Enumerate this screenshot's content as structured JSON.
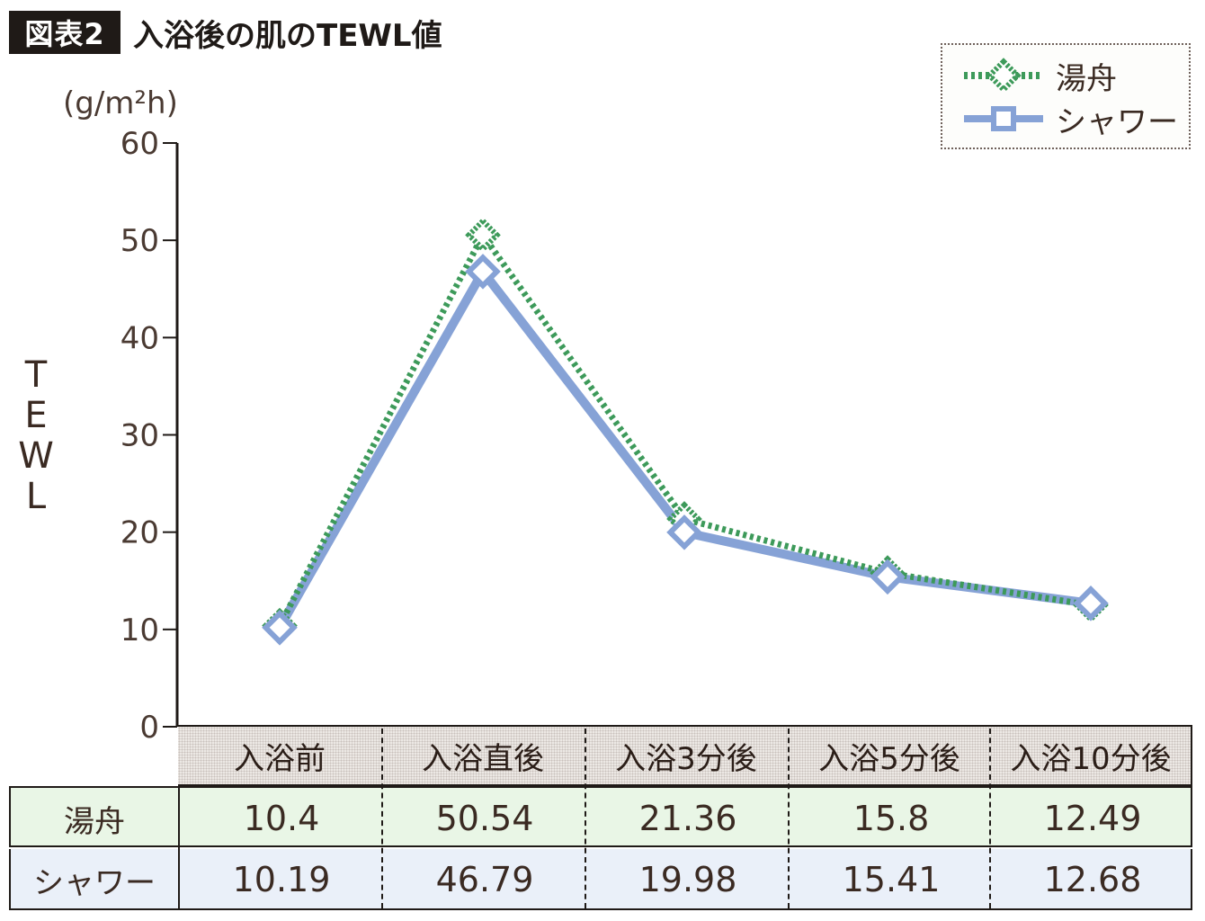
{
  "header": {
    "badge": "図表2",
    "title": "入浴後の肌のTEWL値"
  },
  "chart_data": {
    "type": "line",
    "unit": "(g/m²h)",
    "ylabel": "TEWL",
    "ylim": [
      0,
      60
    ],
    "yticks": [
      0,
      10,
      20,
      30,
      40,
      50,
      60
    ],
    "categories": [
      "入浴前",
      "入浴直後",
      "入浴3分後",
      "入浴5分後",
      "入浴10分後"
    ],
    "series": [
      {
        "name": "湯舟",
        "values": [
          10.4,
          50.54,
          21.36,
          15.8,
          12.49
        ],
        "color": "#3d9a5a",
        "style": "dotted",
        "marker": "diamond"
      },
      {
        "name": "シャワー",
        "values": [
          10.19,
          46.79,
          19.98,
          15.41,
          12.68
        ],
        "color": "#86a2d6",
        "style": "solid",
        "marker": "square-diamond"
      }
    ],
    "legend_position": "top-right",
    "grid": false
  },
  "table": {
    "rows": [
      {
        "label": "湯舟",
        "values": [
          "10.4",
          "50.54",
          "21.36",
          "15.8",
          "12.49"
        ],
        "bg": "#e9f6e6"
      },
      {
        "label": "シャワー",
        "values": [
          "10.19",
          "46.79",
          "19.98",
          "15.41",
          "12.68"
        ],
        "bg": "#eaf0f9"
      }
    ]
  }
}
